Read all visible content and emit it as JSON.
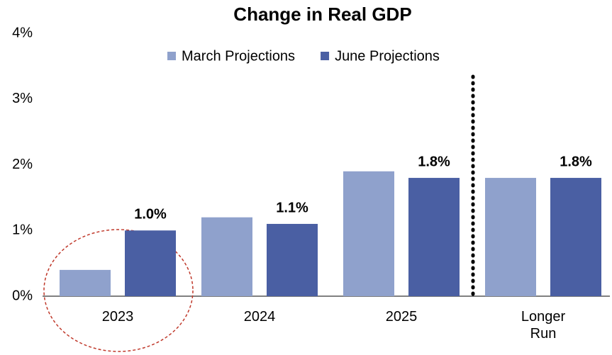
{
  "chart_data": {
    "type": "bar",
    "title": "Change in Real GDP",
    "categories": [
      "2023",
      "2024",
      "2025",
      "Longer Run"
    ],
    "series": [
      {
        "name": "March Projections",
        "color": "#8fa1cc",
        "values": [
          0.4,
          1.2,
          1.9,
          1.8
        ]
      },
      {
        "name": "June Projections",
        "color": "#4a5fa3",
        "values": [
          1.0,
          1.1,
          1.8,
          1.8
        ],
        "value_labels": [
          "1.0%",
          "1.1%",
          "1.8%",
          "1.8%"
        ]
      }
    ],
    "ylim": [
      0,
      4
    ],
    "yticks": [
      {
        "value": 0,
        "label": "0%"
      },
      {
        "value": 1,
        "label": "1%"
      },
      {
        "value": 2,
        "label": "2%"
      },
      {
        "value": 3,
        "label": "3%"
      },
      {
        "value": 4,
        "label": "4%"
      }
    ],
    "legend": "top"
  }
}
